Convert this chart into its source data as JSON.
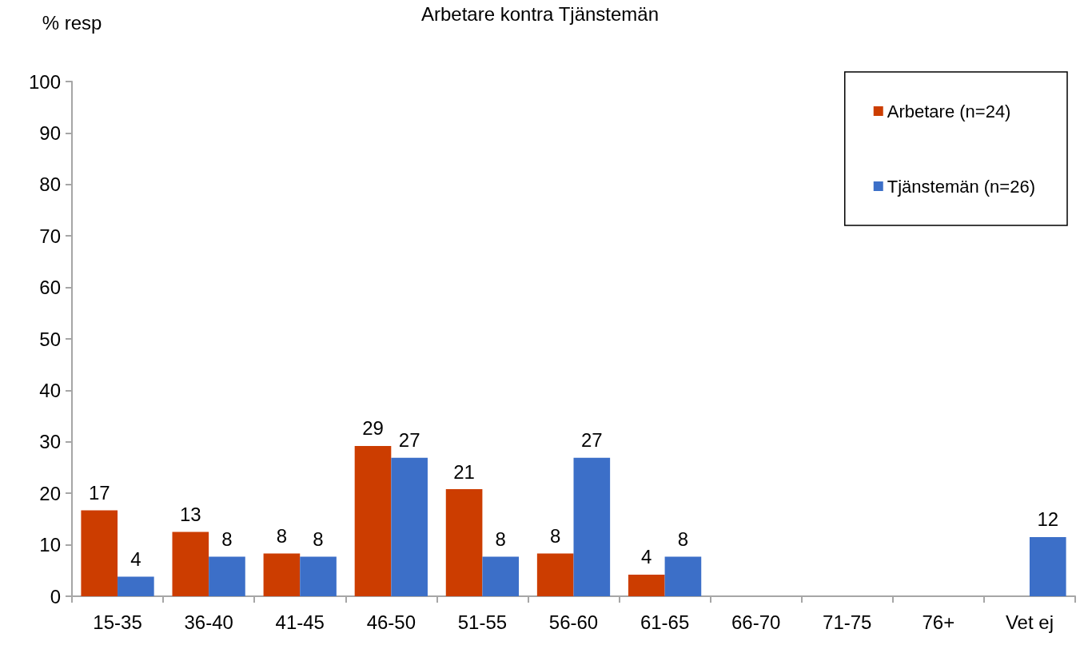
{
  "chart_data": {
    "type": "bar",
    "title": "Arbetare kontra Tjänstemän",
    "ylabel": "% resp",
    "categories": [
      "15-35",
      "36-40",
      "41-45",
      "46-50",
      "51-55",
      "56-60",
      "61-65",
      "66-70",
      "71-75",
      "76+",
      "Vet ej"
    ],
    "series": [
      {
        "name": "Arbetare (n=24)",
        "color": "#cc3d00",
        "values": [
          16.7,
          12.5,
          8.3,
          29.2,
          20.8,
          8.3,
          4.2,
          0,
          0,
          0,
          0
        ],
        "value_labels": [
          "17",
          "13",
          "8",
          "29",
          "21",
          "8",
          "4",
          null,
          null,
          null,
          null
        ]
      },
      {
        "name": "Tjänstemän (n=26)",
        "color": "#3c6fc8",
        "values": [
          3.8,
          7.7,
          7.7,
          26.9,
          7.7,
          26.9,
          7.7,
          0,
          0,
          0,
          11.5
        ],
        "value_labels": [
          "4",
          "8",
          "8",
          "27",
          "8",
          "27",
          "8",
          null,
          null,
          null,
          "12"
        ]
      }
    ],
    "ylim": [
      0,
      100
    ],
    "yticks": [
      0,
      10,
      20,
      30,
      40,
      50,
      60,
      70,
      80,
      90,
      100
    ],
    "grid": false,
    "legend": "top right"
  }
}
